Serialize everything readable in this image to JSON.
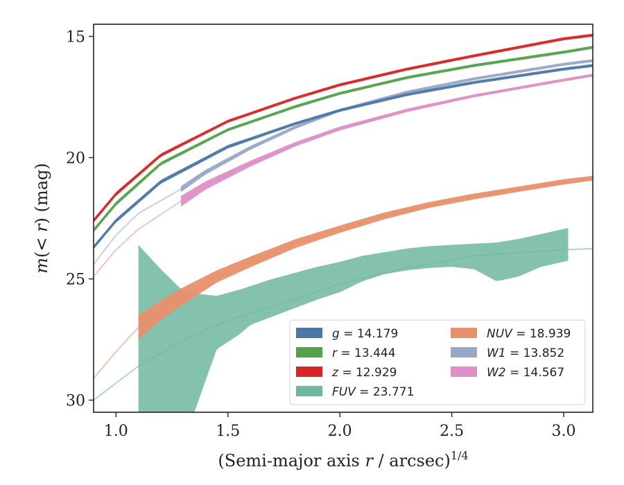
{
  "chart_data": {
    "type": "line",
    "xlabel_prefix": "(Semi-major axis ",
    "xlabel_var": "r",
    "xlabel_mid": " / arcsec)",
    "xlabel_exp": "1/4",
    "ylabel_prefix": "m",
    "ylabel_mid": "(< ",
    "ylabel_var": "r",
    "ylabel_suffix": ") (mag)",
    "xlim": [
      0.9,
      3.13
    ],
    "ylim": [
      30.5,
      14.5
    ],
    "y_inverted": true,
    "xticks": [
      1.0,
      1.5,
      2.0,
      2.5,
      3.0
    ],
    "xtick_labels": [
      "1.0",
      "1.5",
      "2.0",
      "2.5",
      "3.0"
    ],
    "yticks": [
      15,
      20,
      25,
      30
    ],
    "ytick_labels": [
      "15",
      "20",
      "25",
      "30"
    ],
    "grid": false,
    "legend_position": "lower-right",
    "legend_columns": 2,
    "series": [
      {
        "name": "g",
        "total_mag": "14.179",
        "color": "#4c78a8",
        "style": "band",
        "band_start": 0.9,
        "x": [
          0.9,
          1.0,
          1.2,
          1.5,
          1.8,
          2.0,
          2.3,
          2.6,
          3.0,
          3.13
        ],
        "y": [
          23.7,
          22.6,
          21.0,
          19.55,
          18.6,
          18.05,
          17.4,
          16.9,
          16.35,
          16.2
        ],
        "half_width": [
          0.08,
          0.08,
          0.08,
          0.07,
          0.06,
          0.06,
          0.05,
          0.05,
          0.05,
          0.05
        ]
      },
      {
        "name": "r",
        "total_mag": "13.444",
        "color": "#54a24b",
        "style": "band",
        "band_start": 0.9,
        "x": [
          0.9,
          1.0,
          1.2,
          1.5,
          1.8,
          2.0,
          2.3,
          2.6,
          3.0,
          3.13
        ],
        "y": [
          23.0,
          21.9,
          20.25,
          18.85,
          17.9,
          17.35,
          16.7,
          16.2,
          15.65,
          15.45
        ],
        "half_width": [
          0.08,
          0.08,
          0.07,
          0.06,
          0.05,
          0.05,
          0.05,
          0.05,
          0.05,
          0.05
        ]
      },
      {
        "name": "z",
        "total_mag": "12.929",
        "color": "#d62728",
        "style": "band",
        "band_start": 0.9,
        "x": [
          0.9,
          1.0,
          1.2,
          1.5,
          1.8,
          2.0,
          2.3,
          2.6,
          3.0,
          3.13
        ],
        "y": [
          22.6,
          21.5,
          19.9,
          18.5,
          17.55,
          17.0,
          16.35,
          15.8,
          15.1,
          14.95
        ],
        "half_width": [
          0.08,
          0.08,
          0.07,
          0.06,
          0.05,
          0.05,
          0.05,
          0.05,
          0.05,
          0.05
        ]
      },
      {
        "name": "FUV",
        "total_mag": "23.771",
        "color": "#6fb79f",
        "style": "band",
        "band_start": 1.1,
        "band_end": 3.02,
        "x": [
          0.9,
          1.0,
          1.1,
          1.3,
          1.5,
          1.8,
          2.0,
          2.3,
          2.6,
          3.0,
          3.13
        ],
        "y": [
          30.0,
          29.3,
          28.6,
          27.55,
          26.7,
          25.85,
          25.2,
          24.55,
          24.05,
          23.8,
          23.75
        ],
        "band_x": [
          1.1,
          1.2,
          1.3,
          1.35,
          1.45,
          1.55,
          1.6,
          1.7,
          1.8,
          1.9,
          2.0,
          2.1,
          2.2,
          2.3,
          2.4,
          2.5,
          2.6,
          2.7,
          2.8,
          2.9,
          3.02
        ],
        "band_upper": [
          23.6,
          24.6,
          25.5,
          25.6,
          25.7,
          25.45,
          25.3,
          25.0,
          24.75,
          24.5,
          24.3,
          24.05,
          23.9,
          23.75,
          23.65,
          23.6,
          23.55,
          23.5,
          23.35,
          23.15,
          22.9
        ],
        "band_lower": [
          31.0,
          31.0,
          31.0,
          30.5,
          27.9,
          27.3,
          26.9,
          26.55,
          26.2,
          25.85,
          25.55,
          25.1,
          24.8,
          24.65,
          24.55,
          24.5,
          24.6,
          25.1,
          24.9,
          24.5,
          24.25
        ]
      },
      {
        "name": "NUV",
        "total_mag": "18.939",
        "color": "#e8906c",
        "style": "band",
        "band_start": 1.1,
        "x": [
          0.9,
          1.0,
          1.1,
          1.2,
          1.3,
          1.45,
          1.6,
          1.8,
          2.0,
          2.2,
          2.4,
          2.6,
          2.8,
          3.0,
          3.13
        ],
        "y": [
          29.1,
          28.0,
          27.0,
          26.3,
          25.7,
          24.9,
          24.3,
          23.55,
          22.95,
          22.4,
          21.95,
          21.6,
          21.3,
          21.0,
          20.85
        ],
        "half_width": [
          0.0,
          0.0,
          0.5,
          0.4,
          0.35,
          0.25,
          0.22,
          0.18,
          0.15,
          0.14,
          0.12,
          0.12,
          0.11,
          0.11,
          0.1
        ]
      },
      {
        "name": "W1",
        "total_mag": "13.852",
        "color": "#9aa8c8",
        "style": "band",
        "band_start": 1.29,
        "x": [
          0.9,
          1.0,
          1.1,
          1.29,
          1.4,
          1.6,
          1.8,
          2.0,
          2.3,
          2.6,
          3.0,
          3.13
        ],
        "y": [
          24.4,
          23.2,
          22.3,
          21.3,
          20.6,
          19.6,
          18.75,
          18.05,
          17.3,
          16.75,
          16.15,
          16.0
        ],
        "half_width": [
          0.0,
          0.0,
          0.0,
          0.12,
          0.1,
          0.08,
          0.07,
          0.06,
          0.06,
          0.05,
          0.05,
          0.05
        ]
      },
      {
        "name": "W2",
        "total_mag": "14.567",
        "color": "#de8fc6",
        "style": "band",
        "band_start": 1.29,
        "x": [
          0.9,
          1.0,
          1.1,
          1.29,
          1.4,
          1.6,
          1.8,
          2.0,
          2.3,
          2.6,
          3.0,
          3.13
        ],
        "y": [
          24.9,
          23.8,
          22.95,
          21.8,
          21.15,
          20.25,
          19.45,
          18.8,
          18.05,
          17.45,
          16.8,
          16.6
        ],
        "half_width": [
          0.0,
          0.0,
          0.0,
          0.22,
          0.17,
          0.12,
          0.09,
          0.08,
          0.07,
          0.06,
          0.06,
          0.06
        ]
      }
    ],
    "legend": [
      {
        "var": "g",
        "rest": " = 14.179",
        "color": "#4c78a8"
      },
      {
        "var": "r",
        "rest": " = 13.444",
        "color": "#54a24b"
      },
      {
        "var": "z",
        "rest": " = 12.929",
        "color": "#d62728"
      },
      {
        "var": "FUV",
        "rest": " = 23.771",
        "color": "#6fb79f"
      },
      {
        "var": "NUV",
        "rest": " = 18.939",
        "color": "#e8906c"
      },
      {
        "var": "W1",
        "rest": " = 13.852",
        "color": "#9aa8c8"
      },
      {
        "var": "W2",
        "rest": " = 14.567",
        "color": "#de8fc6"
      }
    ]
  }
}
